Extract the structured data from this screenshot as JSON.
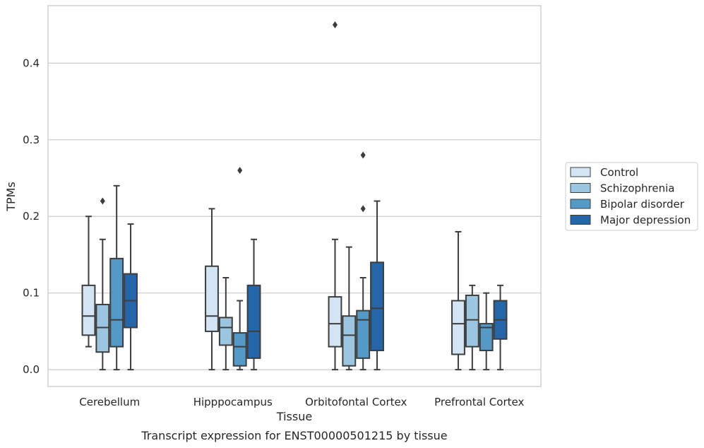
{
  "chart_data": {
    "type": "box",
    "xlabel": "Tissue",
    "ylabel": "TPMs",
    "caption": "Transcript expression for ENST00000501215 by tissue",
    "ylim": [
      -0.022,
      0.475
    ],
    "yticks": [
      0.0,
      0.1,
      0.2,
      0.3,
      0.4
    ],
    "ytick_labels": [
      "0.0",
      "0.1",
      "0.2",
      "0.3",
      "0.4"
    ],
    "grid": "horizontal",
    "legend_position": "right",
    "categories": [
      "Cerebellum",
      "Hipppocampus",
      "Orbitofontal Cortex",
      "Prefrontal Cortex"
    ],
    "series": [
      {
        "name": "Control",
        "color": "#d3e4f4",
        "boxes": [
          {
            "whislo": 0.03,
            "q1": 0.045,
            "med": 0.07,
            "q3": 0.11,
            "whishi": 0.2,
            "fliers": []
          },
          {
            "whislo": 0.0,
            "q1": 0.05,
            "med": 0.07,
            "q3": 0.135,
            "whishi": 0.21,
            "fliers": []
          },
          {
            "whislo": 0.0,
            "q1": 0.03,
            "med": 0.06,
            "q3": 0.095,
            "whishi": 0.17,
            "fliers": [
              0.45
            ]
          },
          {
            "whislo": 0.0,
            "q1": 0.02,
            "med": 0.06,
            "q3": 0.09,
            "whishi": 0.18,
            "fliers": []
          }
        ]
      },
      {
        "name": "Schizophrenia",
        "color": "#9cc5df",
        "boxes": [
          {
            "whislo": 0.0,
            "q1": 0.023,
            "med": 0.055,
            "q3": 0.085,
            "whishi": 0.17,
            "fliers": [
              0.22
            ]
          },
          {
            "whislo": 0.0,
            "q1": 0.032,
            "med": 0.055,
            "q3": 0.068,
            "whishi": 0.12,
            "fliers": []
          },
          {
            "whislo": 0.0,
            "q1": 0.005,
            "med": 0.045,
            "q3": 0.07,
            "whishi": 0.16,
            "fliers": []
          },
          {
            "whislo": 0.0,
            "q1": 0.03,
            "med": 0.065,
            "q3": 0.097,
            "whishi": 0.11,
            "fliers": []
          }
        ]
      },
      {
        "name": "Bipolar disorder",
        "color": "#5599c7",
        "boxes": [
          {
            "whislo": 0.0,
            "q1": 0.03,
            "med": 0.065,
            "q3": 0.145,
            "whishi": 0.24,
            "fliers": []
          },
          {
            "whislo": 0.0,
            "q1": 0.005,
            "med": 0.03,
            "q3": 0.048,
            "whishi": 0.09,
            "fliers": [
              0.26
            ]
          },
          {
            "whislo": 0.0,
            "q1": 0.015,
            "med": 0.065,
            "q3": 0.077,
            "whishi": 0.12,
            "fliers": [
              0.28,
              0.21
            ]
          },
          {
            "whislo": 0.0,
            "q1": 0.025,
            "med": 0.055,
            "q3": 0.06,
            "whishi": 0.1,
            "fliers": []
          }
        ]
      },
      {
        "name": "Major depression",
        "color": "#2566a8",
        "boxes": [
          {
            "whislo": 0.0,
            "q1": 0.055,
            "med": 0.09,
            "q3": 0.125,
            "whishi": 0.19,
            "fliers": []
          },
          {
            "whislo": 0.0,
            "q1": 0.015,
            "med": 0.05,
            "q3": 0.11,
            "whishi": 0.17,
            "fliers": []
          },
          {
            "whislo": 0.0,
            "q1": 0.025,
            "med": 0.08,
            "q3": 0.14,
            "whishi": 0.22,
            "fliers": []
          },
          {
            "whislo": 0.0,
            "q1": 0.04,
            "med": 0.065,
            "q3": 0.09,
            "whishi": 0.11,
            "fliers": []
          }
        ]
      }
    ]
  }
}
